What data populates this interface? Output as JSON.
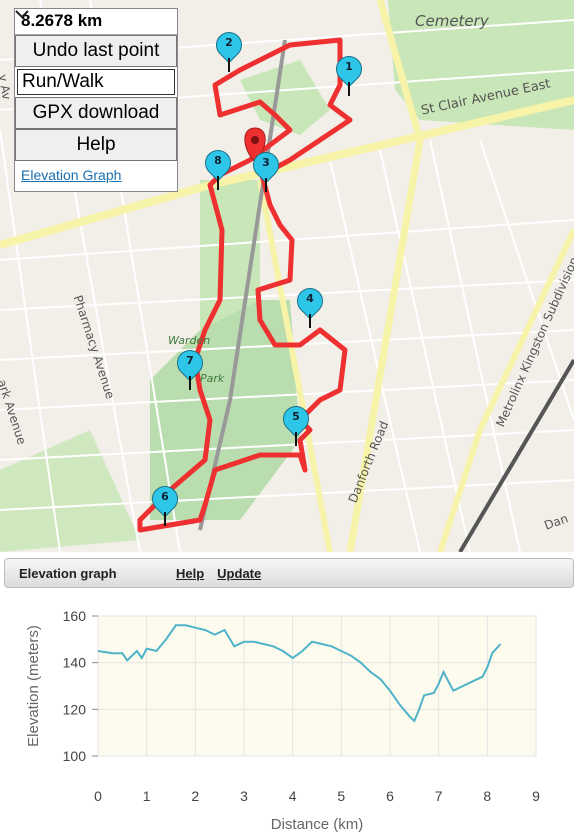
{
  "panel": {
    "distance": "8.2678 km",
    "undo_label": "Undo last point",
    "mode_value": "Run/Walk",
    "gpx_label": "GPX download",
    "help_label": "Help",
    "elevation_link": "Elevation Graph"
  },
  "map": {
    "labels": {
      "cemetery": "Cemetery",
      "st_clair": "St Clair Avenue East",
      "pharmacy": "Pharmacy Avenue",
      "park_avenue": "ark Avenue",
      "danforth_road": "Danforth Road",
      "metrolinx": "Metrolinx Kingston Subdivision",
      "warden_woods": "Warden",
      "park": "Park",
      "dan": "Dan",
      "y_av": "y Av"
    },
    "markers": [
      "1",
      "2",
      "3",
      "4",
      "5",
      "6",
      "7",
      "8"
    ],
    "route_color": "#ee3030",
    "marker_color": "#2ec6e8"
  },
  "elevation_panel": {
    "title": "Elevation graph",
    "help_link": "Help",
    "update_link": "Update"
  },
  "chart_data": {
    "type": "line",
    "xlabel": "Distance (km)",
    "ylabel": "Elevation (meters)",
    "xlim": [
      0,
      9
    ],
    "ylim": [
      100,
      160
    ],
    "x_ticks": [
      "0",
      "1",
      "2",
      "3",
      "4",
      "5",
      "6",
      "7",
      "8",
      "9"
    ],
    "y_ticks": [
      "100",
      "120",
      "140",
      "160"
    ],
    "grid": true,
    "line_color": "#4fb3c8",
    "series": [
      {
        "x": [
          0,
          0.3,
          0.5,
          0.6,
          0.8,
          0.9,
          1.0,
          1.2,
          1.4,
          1.6,
          1.8,
          2.0,
          2.2,
          2.4,
          2.6,
          2.8,
          3.0,
          3.2,
          3.4,
          3.6,
          3.8,
          4.0,
          4.2,
          4.4,
          4.6,
          4.8,
          5.0,
          5.2,
          5.4,
          5.6,
          5.8,
          6.0,
          6.2,
          6.4,
          6.5,
          6.6,
          6.7,
          6.9,
          7.0,
          7.1,
          7.3,
          7.5,
          7.7,
          7.9,
          8.0,
          8.1,
          8.27
        ],
        "y": [
          145,
          144,
          144,
          141,
          145,
          142,
          146,
          145,
          150,
          156,
          156,
          155,
          154,
          152,
          154,
          147,
          149,
          149,
          148,
          147,
          145,
          142,
          145,
          149,
          148,
          147,
          145,
          143,
          140,
          136,
          133,
          128,
          122,
          117,
          115,
          120,
          126,
          127,
          131,
          136,
          128,
          130,
          132,
          134,
          138,
          144,
          148
        ]
      }
    ]
  }
}
